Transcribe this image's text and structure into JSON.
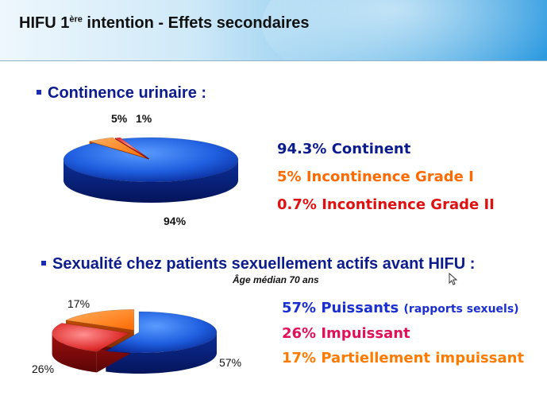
{
  "title": {
    "main": "HIFU 1",
    "sup": "ère",
    "rest": " intention  - Effets secondaires"
  },
  "section1": {
    "heading": "Continence urinaire :",
    "legend": [
      {
        "text": "94.3% Continent",
        "color": "#0c1c8c"
      },
      {
        "text": "5% Incontinence Grade I",
        "color": "#ff6a00"
      },
      {
        "text": "0.7% Incontinence Grade II",
        "color": "#e01010"
      }
    ],
    "pie_labels": {
      "a": "5%",
      "b": "1%",
      "c": "94%"
    }
  },
  "section2": {
    "heading": "Sexualité chez patients sexuellement actifs avant HIFU :",
    "note": "Âge médian 70 ans",
    "legend": [
      {
        "text": "57% Puissants",
        "extra": "(rapports sexuels)",
        "color": "#1a2fd0"
      },
      {
        "text": "26% Impuissant",
        "color": "#e0105a"
      },
      {
        "text": "17% Partiellement impuissant",
        "color": "#ff7a00"
      }
    ],
    "pie_labels": {
      "a": "17%",
      "b": "26%",
      "c": "57%"
    }
  },
  "chart_data": [
    {
      "type": "pie",
      "title": "Continence urinaire :",
      "categories": [
        "Continent",
        "Incontinence Grade I",
        "Incontinence Grade II"
      ],
      "values": [
        94,
        5,
        1
      ],
      "colors": [
        "#1f5fe0",
        "#ff6a00",
        "#e01010"
      ]
    },
    {
      "type": "pie",
      "title": "Sexualité chez patients sexuellement actifs avant HIFU :",
      "categories": [
        "Puissants",
        "Impuissant",
        "Partiellement impuissant"
      ],
      "values": [
        57,
        26,
        17
      ],
      "colors": [
        "#1f5fe0",
        "#e03030",
        "#ff7a00"
      ]
    }
  ]
}
